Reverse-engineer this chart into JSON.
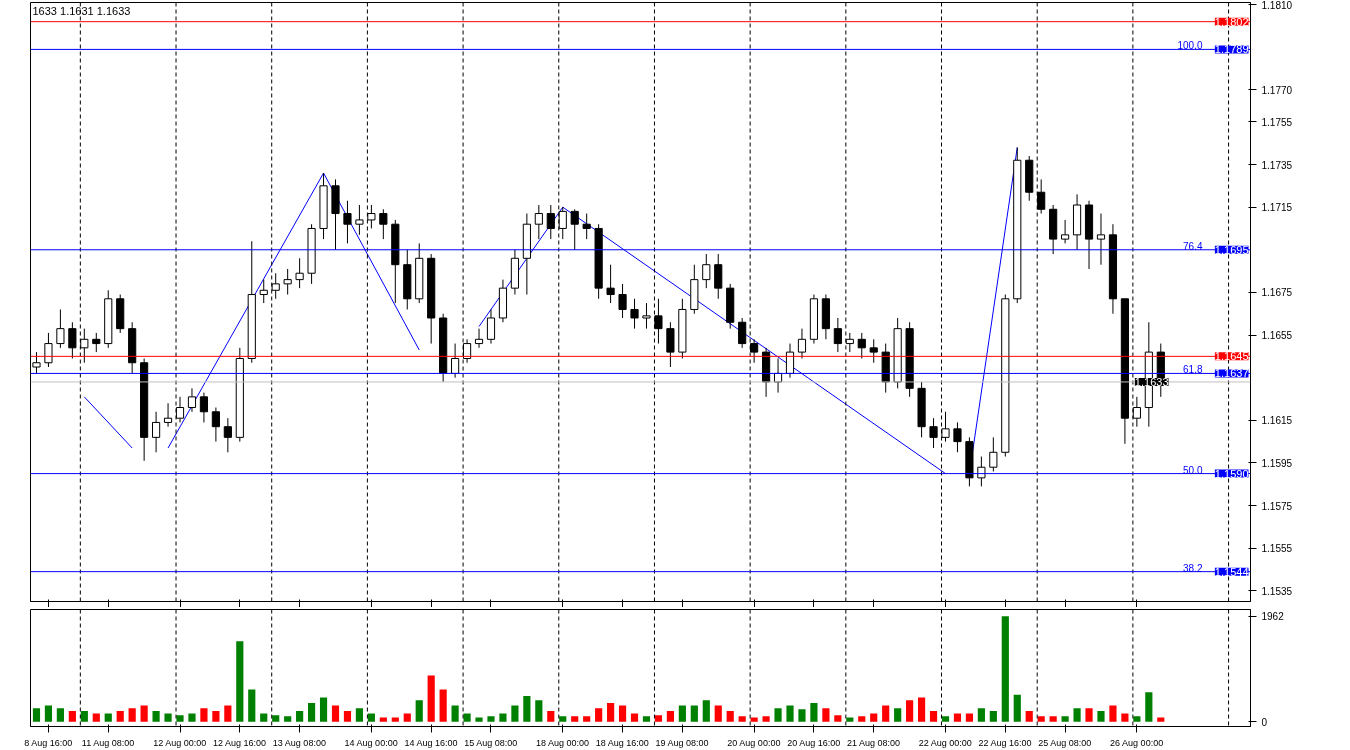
{
  "chart_data": [
    {
      "type": "candlestick",
      "color": "#000000",
      "annotations": [
        "1633 1.1631 1.1633",
        {
          "text": "100.0",
          "y": 1.1789
        },
        {
          "text": "76.4",
          "y": 1.1695
        },
        {
          "text": "61.8",
          "y": 1.1637
        },
        {
          "text": "50.0",
          "y": 1.159
        },
        {
          "text": "38.2",
          "y": 1.1544
        }
      ],
      "ohlc": [
        [
          1.164,
          1.1647,
          1.1637,
          1.1642
        ],
        [
          1.1642,
          1.1656,
          1.164,
          1.1651
        ],
        [
          1.1651,
          1.1667,
          1.1649,
          1.1658
        ],
        [
          1.1658,
          1.1661,
          1.1644,
          1.1649
        ],
        [
          1.1649,
          1.1658,
          1.1642,
          1.1653
        ],
        [
          1.1653,
          1.1656,
          1.1647,
          1.1651
        ],
        [
          1.1651,
          1.1676,
          1.1649,
          1.1672
        ],
        [
          1.1672,
          1.1674,
          1.1656,
          1.1658
        ],
        [
          1.1658,
          1.1661,
          1.1637,
          1.1642
        ],
        [
          1.1642,
          1.1644,
          1.1596,
          1.1607
        ],
        [
          1.1607,
          1.1619,
          1.16,
          1.1614
        ],
        [
          1.1614,
          1.1623,
          1.1612,
          1.1616
        ],
        [
          1.1616,
          1.1626,
          1.1614,
          1.1621
        ],
        [
          1.1621,
          1.163,
          1.1619,
          1.1626
        ],
        [
          1.1626,
          1.1628,
          1.1614,
          1.1619
        ],
        [
          1.1619,
          1.1621,
          1.1605,
          1.1612
        ],
        [
          1.1612,
          1.1616,
          1.16,
          1.1607
        ],
        [
          1.1607,
          1.1649,
          1.1605,
          1.1644
        ],
        [
          1.1644,
          1.1699,
          1.1642,
          1.1674
        ],
        [
          1.1674,
          1.1681,
          1.167,
          1.1676
        ],
        [
          1.1676,
          1.1684,
          1.1672,
          1.1679
        ],
        [
          1.1679,
          1.1686,
          1.1674,
          1.1681
        ],
        [
          1.1681,
          1.1691,
          1.1677,
          1.1684
        ],
        [
          1.1684,
          1.1707,
          1.1679,
          1.1705
        ],
        [
          1.1705,
          1.1731,
          1.17,
          1.1725
        ],
        [
          1.1725,
          1.1728,
          1.1695,
          1.1712
        ],
        [
          1.1712,
          1.1718,
          1.1698,
          1.1707
        ],
        [
          1.1707,
          1.1716,
          1.1702,
          1.1709
        ],
        [
          1.1709,
          1.1716,
          1.1705,
          1.1712
        ],
        [
          1.1712,
          1.1714,
          1.17,
          1.1707
        ],
        [
          1.1707,
          1.1709,
          1.167,
          1.1688
        ],
        [
          1.1688,
          1.1695,
          1.1667,
          1.1672
        ],
        [
          1.1672,
          1.1698,
          1.167,
          1.1691
        ],
        [
          1.1691,
          1.1693,
          1.1651,
          1.1663
        ],
        [
          1.1663,
          1.1665,
          1.1633,
          1.1637
        ],
        [
          1.1637,
          1.1651,
          1.1635,
          1.1644
        ],
        [
          1.1644,
          1.1653,
          1.1642,
          1.1651
        ],
        [
          1.1651,
          1.1658,
          1.1649,
          1.1653
        ],
        [
          1.1653,
          1.1667,
          1.1651,
          1.1663
        ],
        [
          1.1663,
          1.1681,
          1.1661,
          1.1677
        ],
        [
          1.1677,
          1.1695,
          1.1674,
          1.1691
        ],
        [
          1.1691,
          1.1712,
          1.1674,
          1.1707
        ],
        [
          1.1707,
          1.1716,
          1.17,
          1.1712
        ],
        [
          1.1712,
          1.1716,
          1.17,
          1.1705
        ],
        [
          1.1705,
          1.1715,
          1.17,
          1.1713
        ],
        [
          1.1713,
          1.1714,
          1.1695,
          1.1707
        ],
        [
          1.1707,
          1.1712,
          1.17,
          1.1705
        ],
        [
          1.1705,
          1.1707,
          1.1672,
          1.1677
        ],
        [
          1.1677,
          1.1688,
          1.167,
          1.1674
        ],
        [
          1.1674,
          1.1679,
          1.1663,
          1.1667
        ],
        [
          1.1667,
          1.1672,
          1.1658,
          1.1663
        ],
        [
          1.1663,
          1.167,
          1.1658,
          1.1664
        ],
        [
          1.1664,
          1.1672,
          1.1651,
          1.1658
        ],
        [
          1.1658,
          1.1661,
          1.164,
          1.1647
        ],
        [
          1.1647,
          1.1672,
          1.1644,
          1.1667
        ],
        [
          1.1667,
          1.1688,
          1.1665,
          1.1681
        ],
        [
          1.1681,
          1.1693,
          1.1677,
          1.1688
        ],
        [
          1.1688,
          1.1693,
          1.1672,
          1.1677
        ],
        [
          1.1677,
          1.1679,
          1.1658,
          1.1661
        ],
        [
          1.1661,
          1.1663,
          1.1649,
          1.1651
        ],
        [
          1.1651,
          1.1653,
          1.1642,
          1.1647
        ],
        [
          1.1647,
          1.1649,
          1.1626,
          1.1633
        ],
        [
          1.1633,
          1.1644,
          1.1628,
          1.1637
        ],
        [
          1.1637,
          1.1651,
          1.1635,
          1.1647
        ],
        [
          1.1647,
          1.1658,
          1.1644,
          1.1653
        ],
        [
          1.1653,
          1.1674,
          1.1651,
          1.1672
        ],
        [
          1.1672,
          1.1674,
          1.1653,
          1.1658
        ],
        [
          1.1658,
          1.1663,
          1.1647,
          1.1651
        ],
        [
          1.1651,
          1.1656,
          1.1647,
          1.1653
        ],
        [
          1.1653,
          1.1656,
          1.1644,
          1.1649
        ],
        [
          1.1649,
          1.1653,
          1.1642,
          1.1647
        ],
        [
          1.1647,
          1.1651,
          1.1628,
          1.1633
        ],
        [
          1.1633,
          1.1663,
          1.163,
          1.1658
        ],
        [
          1.1658,
          1.1661,
          1.1626,
          1.163
        ],
        [
          1.163,
          1.1633,
          1.1607,
          1.1612
        ],
        [
          1.1612,
          1.1616,
          1.1602,
          1.1607
        ],
        [
          1.1607,
          1.1619,
          1.1605,
          1.1611
        ],
        [
          1.1611,
          1.1614,
          1.16,
          1.1605
        ],
        [
          1.1605,
          1.1607,
          1.1584,
          1.1588
        ],
        [
          1.1588,
          1.1598,
          1.1584,
          1.1593
        ],
        [
          1.1593,
          1.1607,
          1.1591,
          1.16
        ],
        [
          1.16,
          1.1674,
          1.1598,
          1.1672
        ],
        [
          1.1672,
          1.1743,
          1.167,
          1.1737
        ],
        [
          1.1737,
          1.1739,
          1.1718,
          1.1722
        ],
        [
          1.1722,
          1.1728,
          1.1712,
          1.1714
        ],
        [
          1.1714,
          1.1716,
          1.1693,
          1.17
        ],
        [
          1.17,
          1.1709,
          1.1698,
          1.1702
        ],
        [
          1.1702,
          1.1721,
          1.1695,
          1.1716
        ],
        [
          1.1716,
          1.1718,
          1.1686,
          1.17
        ],
        [
          1.17,
          1.1712,
          1.1688,
          1.1702
        ],
        [
          1.1702,
          1.1707,
          1.1665,
          1.1672
        ],
        [
          1.1672,
          1.1672,
          1.1604,
          1.1616
        ],
        [
          1.1616,
          1.1626,
          1.1612,
          1.1621
        ],
        [
          1.1621,
          1.1661,
          1.1612,
          1.1647
        ],
        [
          1.1647,
          1.1651,
          1.1626,
          1.1633
        ],
        null,
        null,
        null,
        null,
        null,
        null,
        null
      ],
      "series": [
        {
          "type": "line",
          "color": "#0000ff",
          "values": [
            null,
            null,
            null,
            null,
            1.1626,
            null,
            null,
            null,
            1.1602,
            null,
            null,
            null,
            null,
            null,
            null,
            null,
            null,
            null,
            null,
            null,
            null,
            null,
            null,
            null,
            null,
            null,
            null,
            null,
            null,
            null,
            null,
            null,
            null,
            null,
            null,
            null,
            null,
            null,
            null,
            null,
            null,
            null,
            null,
            null,
            null,
            null,
            null,
            null,
            null,
            null,
            null,
            null,
            null,
            null,
            null,
            null,
            null,
            null,
            null,
            null,
            null,
            null,
            null,
            null,
            null,
            null,
            null,
            null,
            null,
            null,
            null,
            null,
            null,
            null,
            null,
            null,
            null,
            null,
            null,
            null,
            null,
            null,
            null,
            null,
            null,
            null,
            null,
            null,
            null,
            null,
            null,
            null,
            null,
            null,
            null,
            null,
            null,
            null,
            null,
            null,
            null,
            null
          ]
        },
        {
          "type": "line",
          "color": "#0000ff",
          "values": [
            null,
            null,
            null,
            null,
            null,
            null,
            null,
            null,
            null,
            null,
            null,
            1.1602,
            null,
            null,
            null,
            null,
            null,
            null,
            null,
            null,
            null,
            null,
            null,
            null,
            1.1731,
            null,
            null,
            null,
            null,
            null,
            null,
            null,
            1.1648,
            null,
            null,
            null,
            null,
            null,
            null,
            null,
            null,
            null,
            null,
            null,
            null,
            null,
            null,
            null,
            null,
            null,
            null,
            null,
            null,
            null,
            null,
            null,
            null,
            null,
            null,
            null,
            null,
            null,
            null,
            null,
            null,
            null,
            null,
            null,
            null,
            null,
            null,
            null,
            null,
            null,
            null,
            null,
            null,
            null,
            null,
            null,
            null,
            null,
            null,
            null,
            null,
            null,
            null,
            null,
            null,
            null,
            null,
            null,
            null,
            null,
            null,
            null,
            null,
            null,
            null,
            null,
            null,
            null
          ]
        },
        {
          "type": "line",
          "color": "#0000ff",
          "values": [
            null,
            null,
            null,
            null,
            null,
            null,
            null,
            null,
            null,
            null,
            null,
            null,
            null,
            null,
            null,
            null,
            null,
            null,
            null,
            null,
            null,
            null,
            null,
            null,
            null,
            null,
            null,
            null,
            null,
            null,
            null,
            null,
            null,
            null,
            null,
            null,
            null,
            1.1659,
            null,
            null,
            null,
            null,
            null,
            null,
            1.1715,
            null,
            null,
            null,
            null,
            null,
            null,
            null,
            null,
            null,
            null,
            null,
            null,
            null,
            null,
            null,
            null,
            null,
            null,
            null,
            null,
            null,
            null,
            null,
            null,
            null,
            null,
            null,
            null,
            null,
            null,
            null,
            1.159,
            null,
            null,
            null,
            null,
            null,
            null,
            null,
            null,
            null,
            null,
            null,
            null,
            null,
            null,
            null,
            null,
            null,
            null,
            null,
            null,
            null,
            null,
            null,
            null,
            null
          ]
        },
        {
          "type": "line",
          "color": "#0000ff",
          "values": [
            null,
            null,
            null,
            null,
            null,
            null,
            null,
            null,
            null,
            null,
            null,
            null,
            null,
            null,
            null,
            null,
            null,
            null,
            null,
            null,
            null,
            null,
            null,
            null,
            null,
            null,
            null,
            null,
            null,
            null,
            null,
            null,
            null,
            null,
            null,
            null,
            null,
            null,
            null,
            null,
            null,
            null,
            null,
            null,
            null,
            null,
            null,
            null,
            null,
            null,
            null,
            null,
            null,
            null,
            null,
            null,
            null,
            null,
            null,
            null,
            null,
            null,
            null,
            null,
            null,
            null,
            null,
            null,
            null,
            null,
            null,
            null,
            null,
            null,
            null,
            null,
            null,
            null,
            1.159,
            null,
            null,
            null,
            1.1743,
            null,
            null,
            null,
            null,
            null,
            null,
            null,
            null,
            null,
            null,
            null,
            null,
            null,
            null,
            null,
            null,
            null,
            null,
            null
          ]
        }
      ],
      "ylim": [
        1.153,
        1.1811
      ],
      "yticks": [
        {
          "value": 1.181,
          "label": "1.1810"
        },
        {
          "value": 1.177,
          "label": "1.1770"
        },
        1.1755,
        1.1735,
        1.1715,
        1.1675,
        1.1655,
        1.1615,
        1.1595,
        1.1575,
        1.1555,
        1.1535
      ],
      "tick_labels": "y",
      "ref_lines": [
        {
          "axis": "y",
          "value": 1.1802,
          "label": "1.1802",
          "color": "#ff0000"
        },
        {
          "axis": "y",
          "value": 1.1789,
          "label": "1.1789",
          "color": "#0000ff"
        },
        {
          "axis": "y",
          "value": 1.1695,
          "label": "1.1695",
          "color": "#0000ff"
        },
        {
          "axis": "y",
          "value": 1.1645,
          "label": "1.1645",
          "color": "#ff0000"
        },
        {
          "axis": "y",
          "value": 1.1637,
          "label": "1.1637",
          "color": "#0000ff"
        },
        {
          "axis": "y",
          "value": 1.1633,
          "label": "1.1633",
          "color": "#c0c0c0"
        },
        {
          "axis": "y",
          "value": 1.159,
          "label": "1.1590",
          "color": "#0000ff"
        },
        {
          "axis": "y",
          "value": 1.1544,
          "label": "1.1544",
          "color": "#0000ff"
        }
      ]
    },
    {
      "type": "bar",
      "categories": [
        null,
        "8 Aug 16:00",
        null,
        null,
        null,
        null,
        "11 Aug 08:00",
        null,
        null,
        null,
        null,
        null,
        "12 Aug 00:00",
        null,
        null,
        null,
        null,
        "12 Aug 16:00",
        null,
        null,
        null,
        null,
        "13 Aug 08:00",
        null,
        null,
        null,
        null,
        null,
        "14 Aug 00:00",
        null,
        null,
        null,
        null,
        "14 Aug 16:00",
        null,
        null,
        null,
        null,
        "15 Aug 08:00",
        null,
        null,
        null,
        null,
        null,
        "18 Aug 00:00",
        null,
        null,
        null,
        null,
        "18 Aug 16:00",
        null,
        null,
        null,
        null,
        "19 Aug 08:00",
        null,
        null,
        null,
        null,
        null,
        "20 Aug 00:00",
        null,
        null,
        null,
        null,
        "20 Aug 16:00",
        null,
        null,
        null,
        null,
        "21 Aug 08:00",
        null,
        null,
        null,
        null,
        null,
        "22 Aug 00:00",
        null,
        null,
        null,
        null,
        "22 Aug 16:00",
        null,
        null,
        null,
        null,
        "25 Aug 08:00",
        null,
        null,
        null,
        null,
        null,
        "26 Aug 00:00",
        null,
        null,
        null,
        null,
        null,
        null,
        null,
        null,
        null
      ],
      "values": [
        250,
        300,
        250,
        200,
        200,
        150,
        150,
        200,
        250,
        300,
        200,
        150,
        120,
        150,
        250,
        200,
        300,
        1500,
        600,
        150,
        120,
        100,
        200,
        350,
        450,
        300,
        200,
        250,
        150,
        80,
        80,
        150,
        400,
        860,
        600,
        300,
        150,
        80,
        100,
        150,
        300,
        480,
        400,
        200,
        100,
        100,
        100,
        250,
        350,
        300,
        150,
        100,
        120,
        200,
        300,
        300,
        400,
        300,
        200,
        100,
        80,
        100,
        250,
        300,
        230,
        350,
        250,
        120,
        80,
        100,
        150,
        300,
        250,
        400,
        450,
        200,
        100,
        150,
        150,
        250,
        200,
        1962,
        500,
        200,
        100,
        100,
        100,
        250,
        250,
        200,
        300,
        150,
        100,
        550,
        80,
        null,
        null,
        null,
        null,
        null,
        null,
        null
      ],
      "colors": [
        "#008000",
        "#008000",
        "#008000",
        "#ff0000",
        "#008000",
        "#ff0000",
        "#008000",
        "#ff0000",
        "#ff0000",
        "#ff0000",
        "#008000",
        "#008000",
        "#008000",
        "#008000",
        "#ff0000",
        "#ff0000",
        "#ff0000",
        "#008000",
        "#008000",
        "#008000",
        "#008000",
        "#008000",
        "#008000",
        "#008000",
        "#008000",
        "#ff0000",
        "#ff0000",
        "#008000",
        "#008000",
        "#ff0000",
        "#ff0000",
        "#ff0000",
        "#008000",
        "#ff0000",
        "#ff0000",
        "#008000",
        "#008000",
        "#008000",
        "#008000",
        "#008000",
        "#008000",
        "#008000",
        "#008000",
        "#ff0000",
        "#008000",
        "#ff0000",
        "#ff0000",
        "#ff0000",
        "#ff0000",
        "#ff0000",
        "#ff0000",
        "#008000",
        "#ff0000",
        "#ff0000",
        "#008000",
        "#008000",
        "#008000",
        "#ff0000",
        "#ff0000",
        "#ff0000",
        "#ff0000",
        "#ff0000",
        "#008000",
        "#008000",
        "#008000",
        "#008000",
        "#ff0000",
        "#ff0000",
        "#008000",
        "#ff0000",
        "#ff0000",
        "#ff0000",
        "#008000",
        "#ff0000",
        "#ff0000",
        "#ff0000",
        "#008000",
        "#ff0000",
        "#ff0000",
        "#008000",
        "#008000",
        "#008000",
        "#008000",
        "#ff0000",
        "#ff0000",
        "#ff0000",
        "#008000",
        "#008000",
        "#ff0000",
        "#008000",
        "#ff0000",
        "#ff0000",
        "#008000",
        "#008000",
        "#ff0000",
        null,
        null,
        null,
        null,
        null,
        null,
        null
      ],
      "ylim": [
        -90,
        2090
      ],
      "yticks": [
        0,
        1962
      ]
    }
  ]
}
